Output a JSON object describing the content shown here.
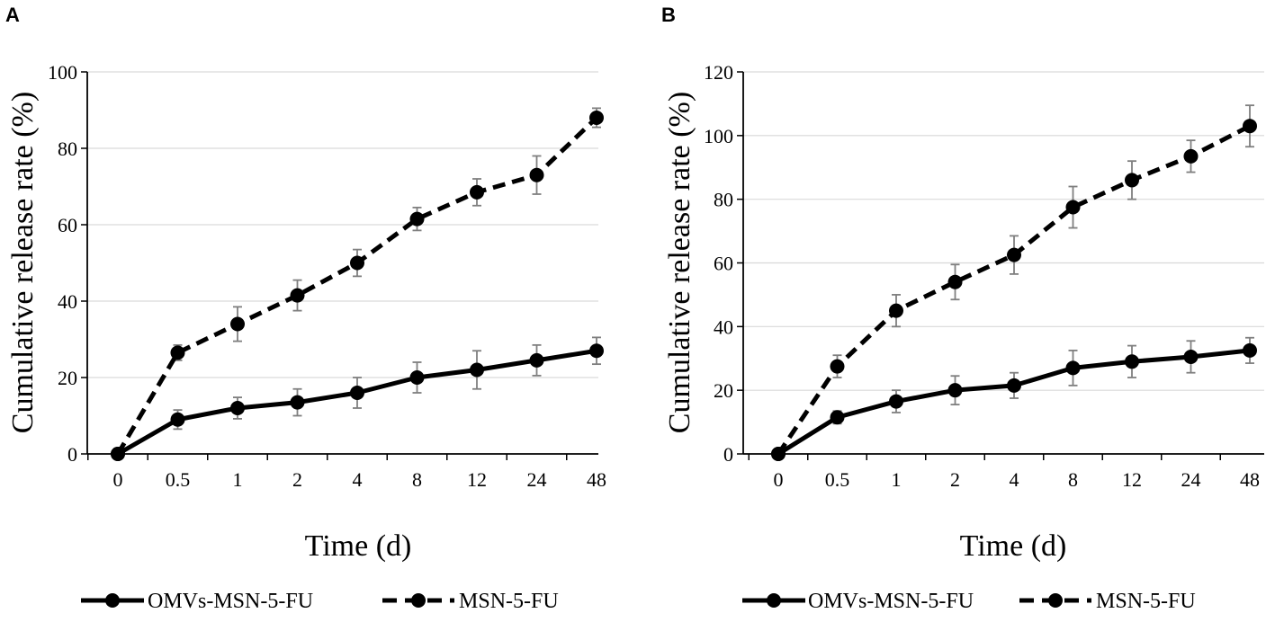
{
  "chart_data": [
    {
      "panel": "A",
      "type": "line",
      "categories": [
        "0",
        "0.5",
        "1",
        "2",
        "4",
        "8",
        "12",
        "24",
        "48"
      ],
      "xlabel": "Time (d)",
      "ylabel": "Cumulative  release  rate  (%)",
      "ylim": [
        0,
        100
      ],
      "yticks": [
        0,
        20,
        40,
        60,
        80,
        100
      ],
      "grid": true,
      "legend_position": "bottom",
      "series": [
        {
          "name": "OMVs-MSN-5-FU",
          "style": "solid",
          "color": "#000000",
          "values": [
            0,
            9,
            12,
            13.5,
            16,
            20,
            22,
            24.5,
            27
          ],
          "errors": [
            1,
            2.5,
            2.8,
            3.5,
            4,
            4,
            5,
            4,
            3.5
          ]
        },
        {
          "name": "MSN-5-FU",
          "style": "dashed",
          "color": "#000000",
          "values": [
            0,
            26.5,
            34,
            41.5,
            50,
            61.5,
            68.5,
            73,
            88
          ],
          "errors": [
            1,
            2,
            4.5,
            4,
            3.5,
            3,
            3.5,
            5,
            2.5
          ]
        }
      ]
    },
    {
      "panel": "B",
      "type": "line",
      "categories": [
        "0",
        "0.5",
        "1",
        "2",
        "4",
        "8",
        "12",
        "24",
        "48"
      ],
      "xlabel": "Time (d)",
      "ylabel": "Cumulative  release  rate  (%)",
      "ylim": [
        0,
        120
      ],
      "yticks": [
        0,
        20,
        40,
        60,
        80,
        100,
        120
      ],
      "grid": true,
      "legend_position": "bottom",
      "series": [
        {
          "name": "OMVs-MSN-5-FU",
          "style": "solid",
          "color": "#000000",
          "values": [
            0,
            11.5,
            16.5,
            20,
            21.5,
            27,
            29,
            30.5,
            32.5
          ],
          "errors": [
            1,
            2,
            3.5,
            4.5,
            4,
            5.5,
            5,
            5,
            4
          ]
        },
        {
          "name": "MSN-5-FU",
          "style": "dashed",
          "color": "#000000",
          "values": [
            0,
            27.5,
            45,
            54,
            62.5,
            77.5,
            86,
            93.5,
            103
          ],
          "errors": [
            1,
            3.5,
            5,
            5.5,
            6,
            6.5,
            6,
            5,
            6.5
          ]
        }
      ]
    }
  ],
  "colors": {
    "grid": "#d9d9d9",
    "axis": "#000000",
    "error_bar": "#7f7f7f",
    "line": "#000000"
  }
}
